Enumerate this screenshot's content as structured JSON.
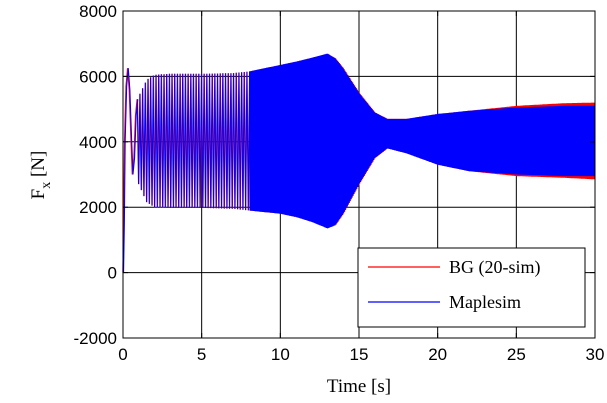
{
  "chart_data": {
    "type": "line",
    "title": "",
    "xlabel": "Time [s]",
    "ylabel": {
      "main": "F",
      "subscript": "x",
      "unit": " [N]"
    },
    "xlim": [
      0,
      30
    ],
    "ylim": [
      -2000,
      8000
    ],
    "xticks": [
      "0",
      "5",
      "10",
      "15",
      "20",
      "25",
      "30"
    ],
    "yticks": [
      "-2000",
      "0",
      "2000",
      "4000",
      "6000",
      "8000"
    ],
    "grid": true,
    "legend_position": "bottom-right",
    "series": [
      {
        "name": "BG (20-sim)",
        "color": "#ff0000",
        "upper_envelope": [
          [
            0.9,
            5300
          ],
          [
            1.5,
            5900
          ],
          [
            2,
            6050
          ],
          [
            3,
            6080
          ],
          [
            5,
            6080
          ],
          [
            7,
            6100
          ],
          [
            8,
            6150
          ],
          [
            9,
            6250
          ],
          [
            10,
            6350
          ],
          [
            11,
            6450
          ],
          [
            12,
            6570
          ],
          [
            13,
            6680
          ],
          [
            13.5,
            6550
          ],
          [
            14,
            6250
          ],
          [
            15,
            5500
          ],
          [
            16,
            4900
          ],
          [
            16.8,
            4700
          ],
          [
            18,
            4700
          ],
          [
            20,
            4850
          ],
          [
            22,
            4950
          ],
          [
            25,
            5100
          ],
          [
            28,
            5180
          ],
          [
            30,
            5200
          ]
        ],
        "lower_envelope": [
          [
            0.9,
            2800
          ],
          [
            1.5,
            2150
          ],
          [
            2,
            2000
          ],
          [
            3,
            1980
          ],
          [
            5,
            1980
          ],
          [
            7,
            1950
          ],
          [
            8,
            1900
          ],
          [
            9,
            1850
          ],
          [
            10,
            1800
          ],
          [
            11,
            1700
          ],
          [
            12,
            1550
          ],
          [
            13,
            1400
          ],
          [
            13.5,
            1450
          ],
          [
            14,
            1800
          ],
          [
            15,
            2700
          ],
          [
            16,
            3500
          ],
          [
            16.8,
            3800
          ],
          [
            18,
            3650
          ],
          [
            20,
            3300
          ],
          [
            22,
            3100
          ],
          [
            25,
            2950
          ],
          [
            28,
            2900
          ],
          [
            30,
            2850
          ]
        ]
      },
      {
        "name": "Maplesim",
        "color": "#0000ff",
        "upper_envelope": [
          [
            0.9,
            5300
          ],
          [
            1.5,
            5900
          ],
          [
            2,
            6050
          ],
          [
            3,
            6080
          ],
          [
            5,
            6080
          ],
          [
            7,
            6100
          ],
          [
            8,
            6150
          ],
          [
            9,
            6250
          ],
          [
            10,
            6350
          ],
          [
            11,
            6450
          ],
          [
            12,
            6570
          ],
          [
            13,
            6700
          ],
          [
            13.5,
            6550
          ],
          [
            14,
            6250
          ],
          [
            15,
            5500
          ],
          [
            16,
            4900
          ],
          [
            16.8,
            4700
          ],
          [
            18,
            4700
          ],
          [
            20,
            4850
          ],
          [
            22,
            4950
          ],
          [
            25,
            5050
          ],
          [
            28,
            5100
          ],
          [
            30,
            5100
          ]
        ],
        "lower_envelope": [
          [
            0.9,
            2800
          ],
          [
            1.5,
            2150
          ],
          [
            2,
            2000
          ],
          [
            3,
            1980
          ],
          [
            5,
            1980
          ],
          [
            7,
            1950
          ],
          [
            8,
            1900
          ],
          [
            9,
            1850
          ],
          [
            10,
            1800
          ],
          [
            11,
            1700
          ],
          [
            12,
            1550
          ],
          [
            13,
            1350
          ],
          [
            13.5,
            1450
          ],
          [
            14,
            1800
          ],
          [
            15,
            2700
          ],
          [
            16,
            3500
          ],
          [
            16.8,
            3800
          ],
          [
            18,
            3650
          ],
          [
            20,
            3300
          ],
          [
            22,
            3100
          ],
          [
            25,
            3000
          ],
          [
            28,
            2950
          ],
          [
            30,
            2950
          ]
        ]
      }
    ],
    "startup_transient": [
      [
        0,
        0
      ],
      [
        0.05,
        1500
      ],
      [
        0.1,
        4000
      ],
      [
        0.2,
        5700
      ],
      [
        0.3,
        6250
      ],
      [
        0.4,
        5600
      ],
      [
        0.5,
        4200
      ],
      [
        0.6,
        3000
      ],
      [
        0.7,
        3500
      ],
      [
        0.8,
        4800
      ],
      [
        0.9,
        5300
      ]
    ]
  }
}
